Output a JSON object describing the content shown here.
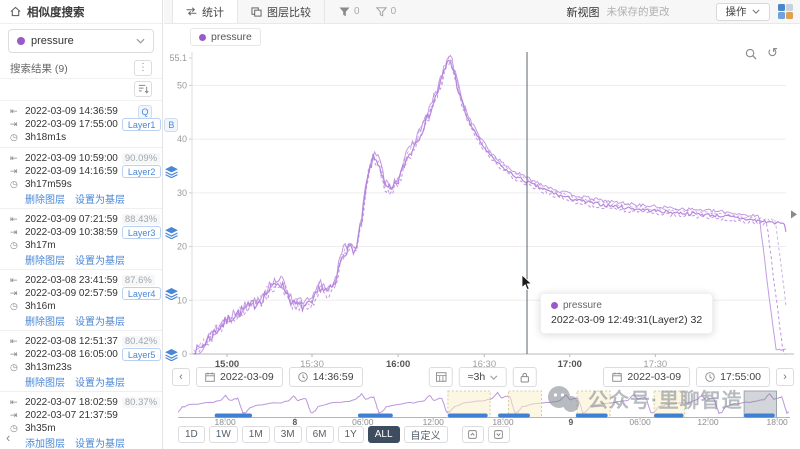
{
  "app": {
    "title": "相似度搜索"
  },
  "sidebar": {
    "metric_selector": {
      "label": "pressure",
      "dot_color": "#9b59c8"
    },
    "results_header": "搜索结果 (9)",
    "collapse_label": "‹",
    "results": [
      {
        "start": "2022-03-09 14:36:59",
        "end": "2022-03-09 17:55:00",
        "duration": "3h18m1s",
        "similarity": "",
        "badge_top": "Q",
        "layer": "Layer1",
        "badge_side": "B",
        "has_layers_icon": false,
        "links": []
      },
      {
        "start": "2022-03-09 10:59:00",
        "end": "2022-03-09 14:16:59",
        "duration": "3h17m59s",
        "similarity": "90.09%",
        "badge_top": "",
        "layer": "Layer2",
        "badge_side": "",
        "has_layers_icon": true,
        "links": [
          "删除图层",
          "设置为基层"
        ]
      },
      {
        "start": "2022-03-09 07:21:59",
        "end": "2022-03-09 10:38:59",
        "duration": "3h17m",
        "similarity": "88.43%",
        "badge_top": "",
        "layer": "Layer3",
        "badge_side": "",
        "has_layers_icon": true,
        "links": [
          "删除图层",
          "设置为基层"
        ]
      },
      {
        "start": "2022-03-08 23:41:59",
        "end": "2022-03-09 02:57:59",
        "duration": "3h16m",
        "similarity": "87.6%",
        "badge_top": "",
        "layer": "Layer4",
        "badge_side": "",
        "has_layers_icon": true,
        "links": [
          "删除图层",
          "设置为基层"
        ]
      },
      {
        "start": "2022-03-08 12:51:37",
        "end": "2022-03-08 16:05:00",
        "duration": "3h13m23s",
        "similarity": "80.42%",
        "badge_top": "",
        "layer": "Layer5",
        "badge_side": "",
        "has_layers_icon": true,
        "links": [
          "删除图层",
          "设置为基层"
        ]
      },
      {
        "start": "2022-03-07 18:02:59",
        "end": "2022-03-07 21:37:59",
        "duration": "3h35m",
        "similarity": "80.37%",
        "badge_top": "",
        "layer": "",
        "badge_side": "",
        "has_layers_icon": false,
        "links": [
          "添加图层",
          "设置为基层"
        ]
      }
    ]
  },
  "toolbar": {
    "tabs": [
      {
        "label": "统计"
      },
      {
        "label": "图层比较"
      }
    ],
    "filters": [
      {
        "count": "0"
      },
      {
        "count": "0"
      }
    ],
    "view_title": "新视图",
    "unsaved": "未保存的更改",
    "actions_button": "操作"
  },
  "legend": {
    "label": "pressure",
    "color": "#9b59c8"
  },
  "tooltip": {
    "series": "pressure",
    "text": "2022-03-09 12:49:31(Layer2) 32"
  },
  "range_bar": {
    "start_date": "2022-03-09",
    "start_time": "14:36:59",
    "window": "≈3h",
    "end_date": "2022-03-09",
    "end_time": "17:55:00"
  },
  "time_presets": {
    "options": [
      "1D",
      "1W",
      "1M",
      "3M",
      "6M",
      "1Y",
      "ALL",
      "自定义"
    ],
    "active": "ALL"
  },
  "watermark": {
    "text": "公众号·里聊智造"
  },
  "chart_data": {
    "type": "line",
    "title": "",
    "ylabel": "pressure",
    "ylim": [
      0,
      55.1
    ],
    "yticks": [
      0,
      10,
      20,
      30,
      40,
      50,
      55.1
    ],
    "xticks": [
      {
        "pos": 0.059,
        "label": "15:00",
        "major": true
      },
      {
        "pos": 0.202,
        "label": "15:30",
        "major": false
      },
      {
        "pos": 0.347,
        "label": "16:00",
        "major": true
      },
      {
        "pos": 0.492,
        "label": "16:30",
        "major": false
      },
      {
        "pos": 0.636,
        "label": "17:00",
        "major": true
      },
      {
        "pos": 0.78,
        "label": "17:30",
        "major": false
      }
    ],
    "series": [
      {
        "name": "pressure",
        "color": "#b482dc",
        "points": [
          [
            0.003,
            0
          ],
          [
            0.017,
            1.5
          ],
          [
            0.042,
            4.5
          ],
          [
            0.067,
            7
          ],
          [
            0.093,
            8.5
          ],
          [
            0.114,
            10
          ],
          [
            0.135,
            12.5
          ],
          [
            0.146,
            13.5
          ],
          [
            0.157,
            12
          ],
          [
            0.168,
            9.5
          ],
          [
            0.185,
            8.8
          ],
          [
            0.202,
            9.2
          ],
          [
            0.215,
            12.5
          ],
          [
            0.229,
            11.5
          ],
          [
            0.241,
            13
          ],
          [
            0.253,
            18.5
          ],
          [
            0.266,
            20
          ],
          [
            0.276,
            19
          ],
          [
            0.286,
            25
          ],
          [
            0.296,
            33
          ],
          [
            0.305,
            36.5
          ],
          [
            0.315,
            35.5
          ],
          [
            0.325,
            31
          ],
          [
            0.337,
            30.5
          ],
          [
            0.348,
            32.5
          ],
          [
            0.36,
            36
          ],
          [
            0.37,
            38
          ],
          [
            0.384,
            41
          ],
          [
            0.397,
            44
          ],
          [
            0.411,
            48
          ],
          [
            0.423,
            52
          ],
          [
            0.433,
            55
          ],
          [
            0.441,
            52.5
          ],
          [
            0.451,
            48
          ],
          [
            0.463,
            44
          ],
          [
            0.475,
            41.5
          ],
          [
            0.488,
            39
          ],
          [
            0.505,
            36.5
          ],
          [
            0.522,
            34.8
          ],
          [
            0.542,
            33.2
          ],
          [
            0.564,
            32
          ],
          [
            0.589,
            30.8
          ],
          [
            0.619,
            29.5
          ],
          [
            0.653,
            28.5
          ],
          [
            0.69,
            27.8
          ],
          [
            0.732,
            27.2
          ],
          [
            0.774,
            26.7
          ],
          [
            0.816,
            26.3
          ],
          [
            0.859,
            26
          ],
          [
            0.901,
            25.6
          ],
          [
            0.939,
            25
          ],
          [
            1.0,
            24.2
          ]
        ]
      }
    ],
    "crosshair": {
      "pos": 0.564,
      "value": 32,
      "label": "2022-03-09 12:49:31(Layer2) 32"
    },
    "minimap": {
      "cycles": 9,
      "ticks": [
        {
          "pos": 0.077,
          "label": "18:00",
          "major": false
        },
        {
          "pos": 0.191,
          "label": "8",
          "major": true
        },
        {
          "pos": 0.302,
          "label": "06:00",
          "major": false
        },
        {
          "pos": 0.417,
          "label": "12:00",
          "major": false
        },
        {
          "pos": 0.531,
          "label": "18:00",
          "major": false
        },
        {
          "pos": 0.642,
          "label": "9",
          "major": true
        },
        {
          "pos": 0.755,
          "label": "06:00",
          "major": false
        },
        {
          "pos": 0.866,
          "label": "12:00",
          "major": false
        },
        {
          "pos": 0.979,
          "label": "18:00",
          "major": false
        }
      ],
      "blue_bars": [
        [
          0.06,
          0.121
        ],
        [
          0.294,
          0.351
        ],
        [
          0.441,
          0.506
        ],
        [
          0.523,
          0.575
        ],
        [
          0.65,
          0.702
        ],
        [
          0.778,
          0.826
        ],
        [
          0.925,
          0.975
        ]
      ],
      "highlights": [
        {
          "range": [
            0.441,
            0.51
          ],
          "type": "match"
        },
        {
          "range": [
            0.54,
            0.594
          ],
          "type": "match"
        },
        {
          "range": [
            0.652,
            0.706
          ],
          "type": "match"
        },
        {
          "range": [
            0.778,
            0.828
          ],
          "type": "match"
        },
        {
          "range": [
            0.925,
            0.978
          ],
          "type": "current"
        }
      ]
    }
  }
}
